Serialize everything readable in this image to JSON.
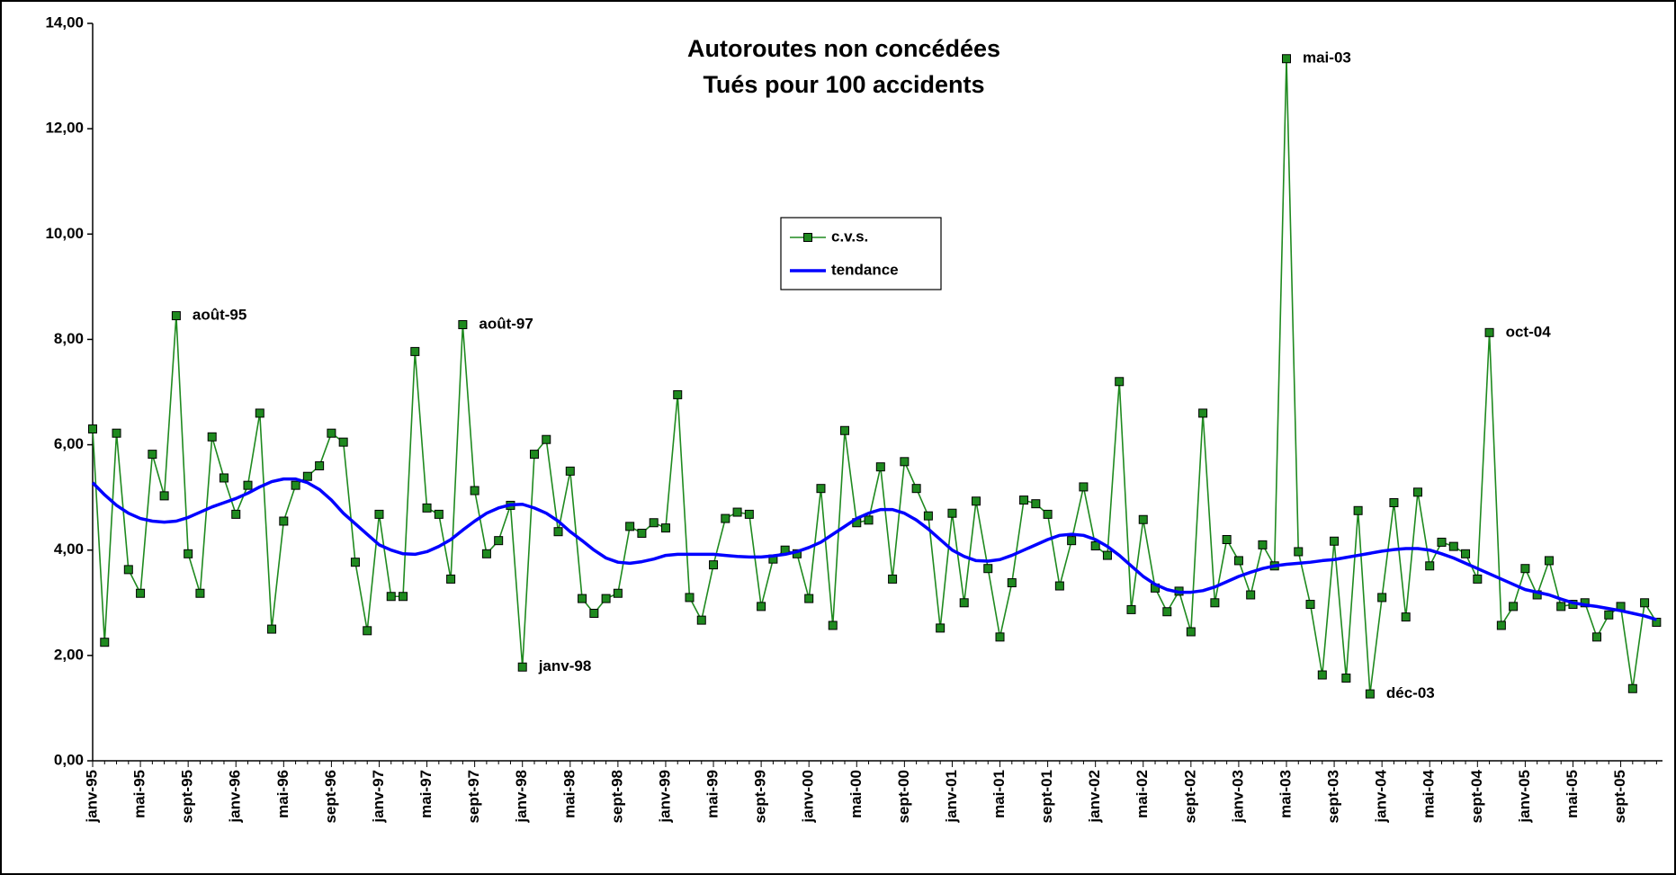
{
  "chart_data": {
    "type": "line",
    "title": "Autoroutes non concédées",
    "subtitle": "Tués pour 100 accidents",
    "categories": [
      "janv-95",
      null,
      null,
      null,
      "mai-95",
      null,
      null,
      null,
      "sept-95",
      null,
      null,
      null,
      "janv-96",
      null,
      null,
      null,
      "mai-96",
      null,
      null,
      null,
      "sept-96",
      null,
      null,
      null,
      "janv-97",
      null,
      null,
      null,
      "mai-97",
      null,
      null,
      null,
      "sept-97",
      null,
      null,
      null,
      "janv-98",
      null,
      null,
      null,
      "mai-98",
      null,
      null,
      null,
      "sept-98",
      null,
      null,
      null,
      "janv-99",
      null,
      null,
      null,
      "mai-99",
      null,
      null,
      null,
      "sept-99",
      null,
      null,
      null,
      "janv-00",
      null,
      null,
      null,
      "mai-00",
      null,
      null,
      null,
      "sept-00",
      null,
      null,
      null,
      "janv-01",
      null,
      null,
      null,
      "mai-01",
      null,
      null,
      null,
      "sept-01",
      null,
      null,
      null,
      "janv-02",
      null,
      null,
      null,
      "mai-02",
      null,
      null,
      null,
      "sept-02",
      null,
      null,
      null,
      "janv-03",
      null,
      null,
      null,
      "mai-03",
      null,
      null,
      null,
      "sept-03",
      null,
      null,
      null,
      "janv-04",
      null,
      null,
      null,
      "mai-04",
      null,
      null,
      null,
      "sept-04",
      null,
      null,
      null,
      "janv-05",
      null,
      null,
      null,
      "mai-05",
      null,
      null,
      null,
      "sept-05",
      null,
      null,
      null
    ],
    "series": [
      {
        "name": "c.v.s.",
        "color": "#1f8a1f",
        "marker": "square",
        "values": [
          6.3,
          2.25,
          6.22,
          3.63,
          3.18,
          5.82,
          5.03,
          8.45,
          3.93,
          3.18,
          6.15,
          5.37,
          4.68,
          5.23,
          6.6,
          2.5,
          4.55,
          5.23,
          5.4,
          5.6,
          6.22,
          6.05,
          3.77,
          2.47,
          4.68,
          3.12,
          3.12,
          7.77,
          4.8,
          4.68,
          3.45,
          8.28,
          5.13,
          3.93,
          4.18,
          4.85,
          1.78,
          5.82,
          6.1,
          4.35,
          5.5,
          3.08,
          2.8,
          3.08,
          3.18,
          4.45,
          4.32,
          4.52,
          4.42,
          6.95,
          3.1,
          2.67,
          3.72,
          4.6,
          4.72,
          4.68,
          2.93,
          3.83,
          4.0,
          3.93,
          3.08,
          5.17,
          2.57,
          6.27,
          4.52,
          4.57,
          5.58,
          3.45,
          5.68,
          5.17,
          4.65,
          2.52,
          4.7,
          3.0,
          4.93,
          3.65,
          2.35,
          3.38,
          4.95,
          4.88,
          4.68,
          3.32,
          4.18,
          5.2,
          4.08,
          3.9,
          7.2,
          2.87,
          4.58,
          3.28,
          2.83,
          3.22,
          2.45,
          6.6,
          3.0,
          4.2,
          3.8,
          3.15,
          4.1,
          3.7,
          13.33,
          3.97,
          2.97,
          1.63,
          4.17,
          1.57,
          4.75,
          1.27,
          3.1,
          4.9,
          2.73,
          5.1,
          3.7,
          4.15,
          4.07,
          3.93,
          3.45,
          8.13,
          2.57,
          2.93,
          3.65,
          3.15,
          3.8,
          2.93,
          2.97,
          3.0,
          2.35,
          2.77,
          2.93,
          1.37,
          3.0,
          2.63
        ],
        "point_labels": [
          null,
          null,
          null,
          null,
          null,
          null,
          null,
          "août-95",
          null,
          null,
          null,
          null,
          null,
          null,
          null,
          null,
          null,
          null,
          null,
          null,
          null,
          null,
          null,
          null,
          null,
          null,
          null,
          null,
          null,
          null,
          null,
          "août-97",
          null,
          null,
          null,
          null,
          "janv-98",
          null,
          null,
          null,
          null,
          null,
          null,
          null,
          null,
          null,
          null,
          null,
          null,
          null,
          null,
          null,
          null,
          null,
          null,
          null,
          null,
          null,
          null,
          null,
          null,
          null,
          null,
          null,
          null,
          null,
          null,
          null,
          null,
          null,
          null,
          null,
          null,
          null,
          null,
          null,
          null,
          null,
          null,
          null,
          null,
          null,
          null,
          null,
          null,
          null,
          null,
          null,
          null,
          null,
          null,
          null,
          null,
          null,
          null,
          null,
          null,
          null,
          null,
          null,
          "mai-03",
          null,
          null,
          null,
          null,
          null,
          null,
          "déc-03",
          null,
          null,
          null,
          null,
          null,
          null,
          null,
          null,
          null,
          "oct-04",
          null,
          null,
          null,
          null,
          null,
          null,
          null,
          null,
          null,
          null,
          null,
          null,
          null,
          null
        ]
      },
      {
        "name": "tendance",
        "color": "#0000ff",
        "marker": "none",
        "values": [
          5.28,
          5.05,
          4.85,
          4.7,
          4.6,
          4.55,
          4.53,
          4.55,
          4.62,
          4.72,
          4.82,
          4.9,
          4.98,
          5.08,
          5.2,
          5.3,
          5.35,
          5.35,
          5.28,
          5.15,
          4.95,
          4.7,
          4.5,
          4.3,
          4.1,
          4.0,
          3.93,
          3.92,
          3.97,
          4.07,
          4.2,
          4.38,
          4.55,
          4.7,
          4.8,
          4.86,
          4.87,
          4.8,
          4.7,
          4.55,
          4.35,
          4.18,
          4.0,
          3.85,
          3.77,
          3.75,
          3.78,
          3.83,
          3.9,
          3.92,
          3.92,
          3.92,
          3.92,
          3.9,
          3.88,
          3.87,
          3.87,
          3.89,
          3.92,
          3.97,
          4.05,
          4.15,
          4.3,
          4.45,
          4.6,
          4.7,
          4.77,
          4.77,
          4.7,
          4.57,
          4.4,
          4.2,
          4.0,
          3.88,
          3.8,
          3.79,
          3.82,
          3.9,
          4.0,
          4.1,
          4.2,
          4.28,
          4.3,
          4.28,
          4.2,
          4.07,
          3.9,
          3.7,
          3.5,
          3.35,
          3.25,
          3.2,
          3.2,
          3.23,
          3.3,
          3.4,
          3.5,
          3.58,
          3.65,
          3.7,
          3.73,
          3.75,
          3.77,
          3.8,
          3.82,
          3.86,
          3.9,
          3.94,
          3.98,
          4.01,
          4.03,
          4.03,
          4.0,
          3.93,
          3.85,
          3.75,
          3.65,
          3.55,
          3.45,
          3.35,
          3.25,
          3.2,
          3.15,
          3.07,
          3.0,
          2.96,
          2.93,
          2.89,
          2.85,
          2.8,
          2.75,
          2.68
        ]
      }
    ],
    "ylim": [
      0,
      14
    ],
    "yticks": [
      {
        "value": 0,
        "label": "0,00"
      },
      {
        "value": 2,
        "label": "2,00"
      },
      {
        "value": 4,
        "label": "4,00"
      },
      {
        "value": 6,
        "label": "6,00"
      },
      {
        "value": 8,
        "label": "8,00"
      },
      {
        "value": 10,
        "label": "10,00"
      },
      {
        "value": 12,
        "label": "12,00"
      },
      {
        "value": 14,
        "label": "14,00"
      }
    ],
    "grid": false
  }
}
